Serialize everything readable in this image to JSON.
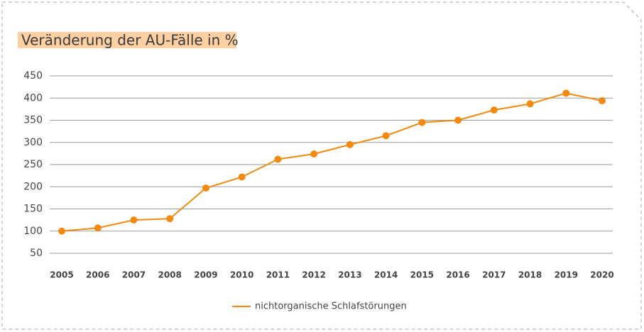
{
  "colors": {
    "series": "#f28a12",
    "title_highlight": "#fdd0a4",
    "grid": "#9e9e9e",
    "border": "#b8b8b8"
  },
  "chart_data": {
    "type": "line",
    "title": "Veränderung der AU-Fälle in %",
    "xlabel": "",
    "ylabel": "",
    "categories": [
      "2005",
      "2006",
      "2007",
      "2008",
      "2009",
      "2010",
      "2011",
      "2012",
      "2013",
      "2014",
      "2015",
      "2016",
      "2017",
      "2018",
      "2019",
      "2020"
    ],
    "y_ticks": [
      "50",
      "100",
      "150",
      "200",
      "250",
      "300",
      "350",
      "400",
      "450"
    ],
    "ylim": [
      50,
      450
    ],
    "grid": true,
    "legend_position": "bottom-center",
    "series": [
      {
        "name": "nichtorganische Schlafstörungen",
        "values": [
          100,
          107,
          125,
          128,
          197,
          222,
          262,
          274,
          295,
          315,
          345,
          350,
          373,
          387,
          411,
          394
        ]
      }
    ]
  }
}
